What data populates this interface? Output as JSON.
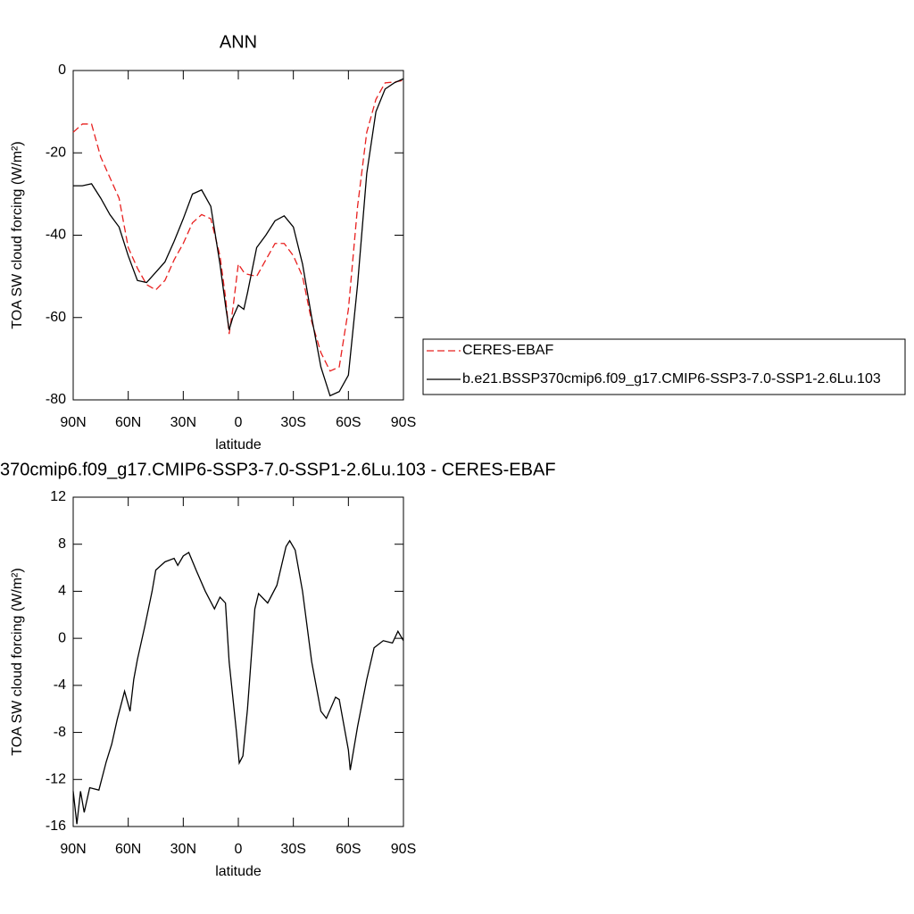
{
  "chart_data": [
    {
      "type": "line",
      "title": "ANN",
      "ylabel": "TOA SW cloud forcing (W/m²)",
      "xlabel": "latitude",
      "x": [
        90,
        85,
        80,
        75,
        70,
        65,
        60,
        55,
        50,
        45,
        40,
        35,
        30,
        25,
        20,
        15,
        10,
        7,
        5,
        3,
        0,
        -3,
        -5,
        -10,
        -15,
        -20,
        -25,
        -30,
        -35,
        -40,
        -45,
        -50,
        -55,
        -60,
        -65,
        -70,
        -75,
        -80,
        -85,
        -90
      ],
      "series": [
        {
          "name": "CERES-EBAF",
          "color": "#e8201f",
          "style": "dashed",
          "values": [
            -15,
            -13,
            -13,
            -21,
            -26,
            -31,
            -43,
            -48,
            -52,
            -53.3,
            -51,
            -46,
            -42,
            -37,
            -35,
            -36,
            -45,
            -55,
            -64,
            -58,
            -47,
            -49,
            -49.5,
            -50,
            -46,
            -42,
            -42,
            -45,
            -50,
            -61,
            -68.5,
            -73,
            -72,
            -58,
            -33,
            -15,
            -7,
            -3,
            -2.8,
            -2.4
          ]
        },
        {
          "name": "b.e21.BSSP370cmip6.f09_g17.CMIP6-SSP3-7.0-SSP1-2.6Lu.103",
          "color": "#000000",
          "style": "solid",
          "values": [
            -28,
            -28,
            -27.5,
            -31,
            -35,
            -38,
            -45,
            -51,
            -51.5,
            -49,
            -46.5,
            -41.5,
            -36,
            -30,
            -29,
            -33,
            -47,
            -57,
            -63,
            -60,
            -57,
            -58,
            -54,
            -43,
            -40,
            -36.5,
            -35.3,
            -38,
            -47,
            -60,
            -72,
            -79,
            -78,
            -74,
            -52,
            -25,
            -10,
            -4.5,
            -3,
            -2
          ]
        }
      ],
      "xlim": [
        90,
        -90
      ],
      "xticks": [
        {
          "value": 90,
          "label": "90N"
        },
        {
          "value": 60,
          "label": "60N"
        },
        {
          "value": 30,
          "label": "30N"
        },
        0,
        {
          "value": -30,
          "label": "30S"
        },
        {
          "value": -60,
          "label": "60S"
        },
        {
          "value": -90,
          "label": "90S"
        }
      ],
      "ylim": [
        -80,
        0
      ],
      "yticks": [
        0,
        -20,
        -40,
        -60,
        -80
      ],
      "legend": "right"
    },
    {
      "type": "line",
      "title": "370cmip6.f09_g17.CMIP6-SSP3-7.0-SSP1-2.6Lu.103 - CERES-EBAF",
      "ylabel": "TOA SW cloud forcing (W/m²)",
      "xlabel": "latitude",
      "x": [
        90,
        88,
        86,
        84,
        81,
        76,
        72,
        69,
        66,
        62,
        59,
        57,
        55,
        51,
        47,
        45,
        40,
        35,
        33,
        30,
        27,
        23,
        18,
        13,
        10,
        7,
        5,
        1,
        -0.5,
        -2.5,
        -5,
        -9,
        -11,
        -16,
        -21,
        -26,
        -28,
        -31,
        -35,
        -40,
        -45,
        -48,
        -53,
        -55,
        -60,
        -61,
        -65,
        -70,
        -74,
        -79,
        -84,
        -87,
        -90
      ],
      "series": [
        {
          "color": "#000000",
          "style": "solid",
          "values": [
            -13,
            -15.8,
            -13,
            -14.8,
            -12.7,
            -12.9,
            -10.5,
            -9,
            -6.9,
            -4.5,
            -6.2,
            -3.5,
            -1.8,
            1,
            4,
            5.8,
            6.5,
            6.8,
            6.2,
            7,
            7.3,
            5.8,
            4,
            2.5,
            3.5,
            3,
            -2,
            -8,
            -10.6,
            -10,
            -6,
            2.5,
            3.8,
            3,
            4.5,
            7.8,
            8.3,
            7.5,
            4,
            -2,
            -6.2,
            -6.8,
            -5,
            -5.2,
            -9.5,
            -11.2,
            -7.5,
            -3.5,
            -0.8,
            -0.2,
            -0.4,
            0.6,
            -0.2
          ]
        }
      ],
      "xlim": [
        90,
        -90
      ],
      "xticks": [
        {
          "value": 90,
          "label": "90N"
        },
        {
          "value": 60,
          "label": "60N"
        },
        {
          "value": 30,
          "label": "30N"
        },
        0,
        {
          "value": -30,
          "label": "30S"
        },
        {
          "value": -60,
          "label": "60S"
        },
        {
          "value": -90,
          "label": "90S"
        }
      ],
      "ylim": [
        -16,
        12
      ],
      "yticks": [
        12,
        8,
        4,
        0,
        -4,
        -8,
        -12,
        -16
      ]
    }
  ]
}
